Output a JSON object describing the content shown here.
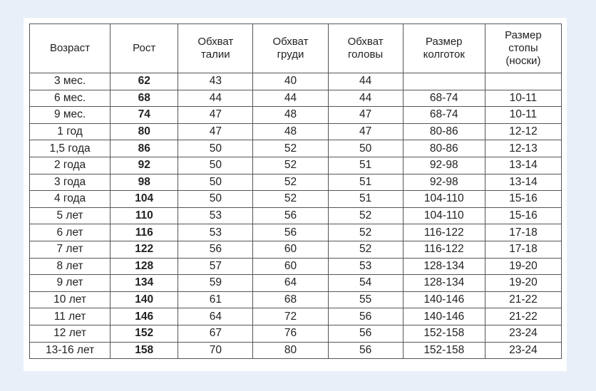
{
  "table": {
    "headers": [
      "Возраст",
      "Рост",
      "Обхват\nталии",
      "Обхват\nгруди",
      "Обхват\nголовы",
      "Размер\nколготок",
      "Размер\nстопы\n(носки)"
    ],
    "rows": [
      [
        "3 мес.",
        "62",
        "43",
        "40",
        "44",
        "",
        ""
      ],
      [
        "6 мес.",
        "68",
        "44",
        "44",
        "44",
        "68-74",
        "10-11"
      ],
      [
        "9 мес.",
        "74",
        "47",
        "48",
        "47",
        "68-74",
        "10-11"
      ],
      [
        "1 год",
        "80",
        "47",
        "48",
        "47",
        "80-86",
        "12-12"
      ],
      [
        "1,5 года",
        "86",
        "50",
        "52",
        "50",
        "80-86",
        "12-13"
      ],
      [
        "2 года",
        "92",
        "50",
        "52",
        "51",
        "92-98",
        "13-14"
      ],
      [
        "3 года",
        "98",
        "50",
        "52",
        "51",
        "92-98",
        "13-14"
      ],
      [
        "4 года",
        "104",
        "50",
        "52",
        "51",
        "104-110",
        "15-16"
      ],
      [
        "5 лет",
        "110",
        "53",
        "56",
        "52",
        "104-110",
        "15-16"
      ],
      [
        "6 лет",
        "116",
        "53",
        "56",
        "52",
        "116-122",
        "17-18"
      ],
      [
        "7 лет",
        "122",
        "56",
        "60",
        "52",
        "116-122",
        "17-18"
      ],
      [
        "8 лет",
        "128",
        "57",
        "60",
        "53",
        "128-134",
        "19-20"
      ],
      [
        "9 лет",
        "134",
        "59",
        "64",
        "54",
        "128-134",
        "19-20"
      ],
      [
        "10 лет",
        "140",
        "61",
        "68",
        "55",
        "140-146",
        "21-22"
      ],
      [
        "11 лет",
        "146",
        "64",
        "72",
        "56",
        "140-146",
        "21-22"
      ],
      [
        "12 лет",
        "152",
        "67",
        "76",
        "56",
        "152-158",
        "23-24"
      ],
      [
        "13-16 лет",
        "158",
        "70",
        "80",
        "56",
        "152-158",
        "23-24"
      ]
    ]
  }
}
